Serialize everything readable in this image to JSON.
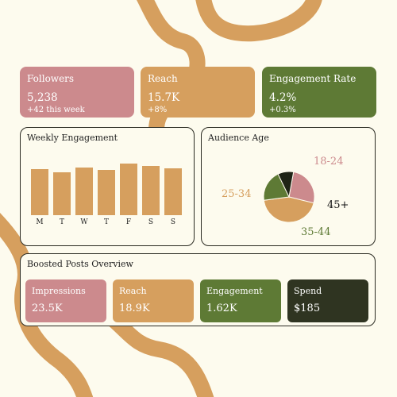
{
  "colors": {
    "rose": "#cc8a8d",
    "tan": "#d69f5e",
    "olive": "#5e7a35",
    "dark": "#2f3421",
    "background": "#fdfbee",
    "stroke": "#d69f5e"
  },
  "stats": [
    {
      "title": "Followers",
      "value": "5,238",
      "delta": "+42 this week"
    },
    {
      "title": "Reach",
      "value": "15.7K",
      "delta": "+8%"
    },
    {
      "title": "Engagement Rate",
      "value": "4.2%",
      "delta": "+0.3%"
    }
  ],
  "weekly": {
    "title": "Weekly Engagement"
  },
  "audience": {
    "title": "Audience Age"
  },
  "boosted": {
    "title": "Boosted Posts Overview",
    "items": [
      {
        "title": "Impressions",
        "value": "23.5K"
      },
      {
        "title": "Reach",
        "value": "18.9K"
      },
      {
        "title": "Engagement",
        "value": "1.62K"
      },
      {
        "title": "Spend",
        "value": "$185"
      }
    ]
  },
  "chart_data": [
    {
      "type": "bar",
      "title": "Weekly Engagement",
      "categories": [
        "M",
        "T",
        "W",
        "T",
        "F",
        "S",
        "S"
      ],
      "values": [
        62,
        58,
        64,
        61,
        70,
        66,
        63
      ],
      "ylim": [
        0,
        75
      ],
      "grid": false
    },
    {
      "type": "pie",
      "title": "Audience Age",
      "labels": [
        "18-24",
        "25-34",
        "35-44",
        "45+"
      ],
      "values": [
        26,
        44,
        20,
        10
      ],
      "colors": [
        "#cc8a8d",
        "#d69f5e",
        "#5e7a35",
        "#1f2416"
      ]
    }
  ]
}
